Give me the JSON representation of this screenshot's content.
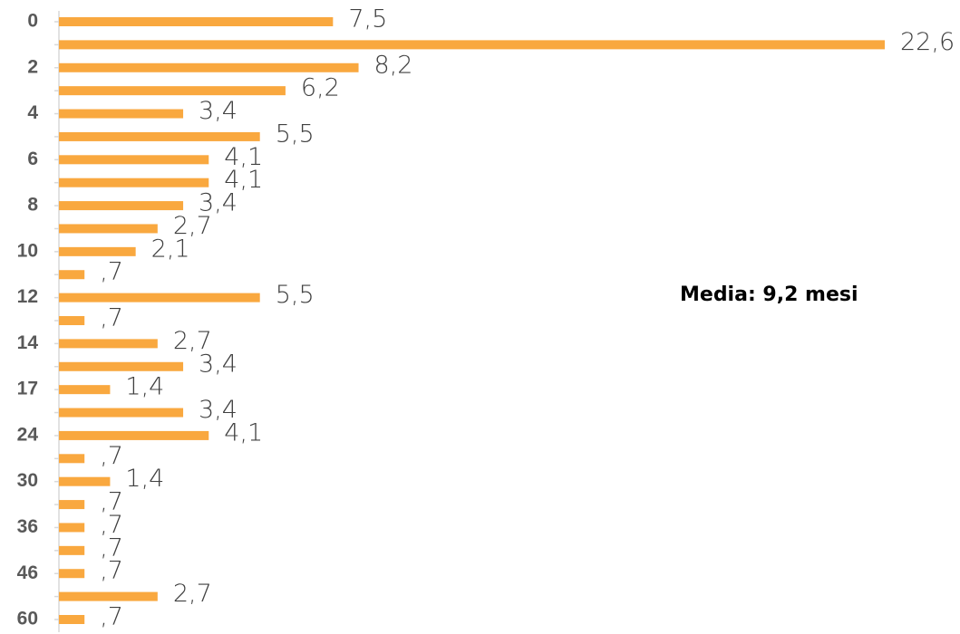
{
  "chart_data": {
    "type": "bar",
    "orientation": "horizontal",
    "annotation": "Media: 9,2 mesi",
    "color": "#f9a83f",
    "categories": [
      "0",
      null,
      "2",
      null,
      "4",
      null,
      "6",
      null,
      "8",
      null,
      "10",
      null,
      "12",
      null,
      "14",
      null,
      "17",
      null,
      "24",
      null,
      "30",
      null,
      "36",
      null,
      "46",
      null,
      "60"
    ],
    "values": [
      7.5,
      22.6,
      8.2,
      6.2,
      3.4,
      5.5,
      4.1,
      4.1,
      3.4,
      2.7,
      2.1,
      0.7,
      5.5,
      0.7,
      2.7,
      3.4,
      1.4,
      3.4,
      4.1,
      0.7,
      1.4,
      0.7,
      0.7,
      0.7,
      0.7,
      2.7,
      0.7
    ],
    "value_labels": [
      "7,5",
      "22,6",
      "8,2",
      "6,2",
      "3,4",
      "5,5",
      "4,1",
      "4,1",
      "3,4",
      "2,7",
      "2,1",
      ",7",
      "5,5",
      ",7",
      "2,7",
      "3,4",
      "1,4",
      "3,4",
      "4,1",
      ",7",
      "1,4",
      ",7",
      ",7",
      ",7",
      ",7",
      "2,7",
      ",7"
    ]
  }
}
